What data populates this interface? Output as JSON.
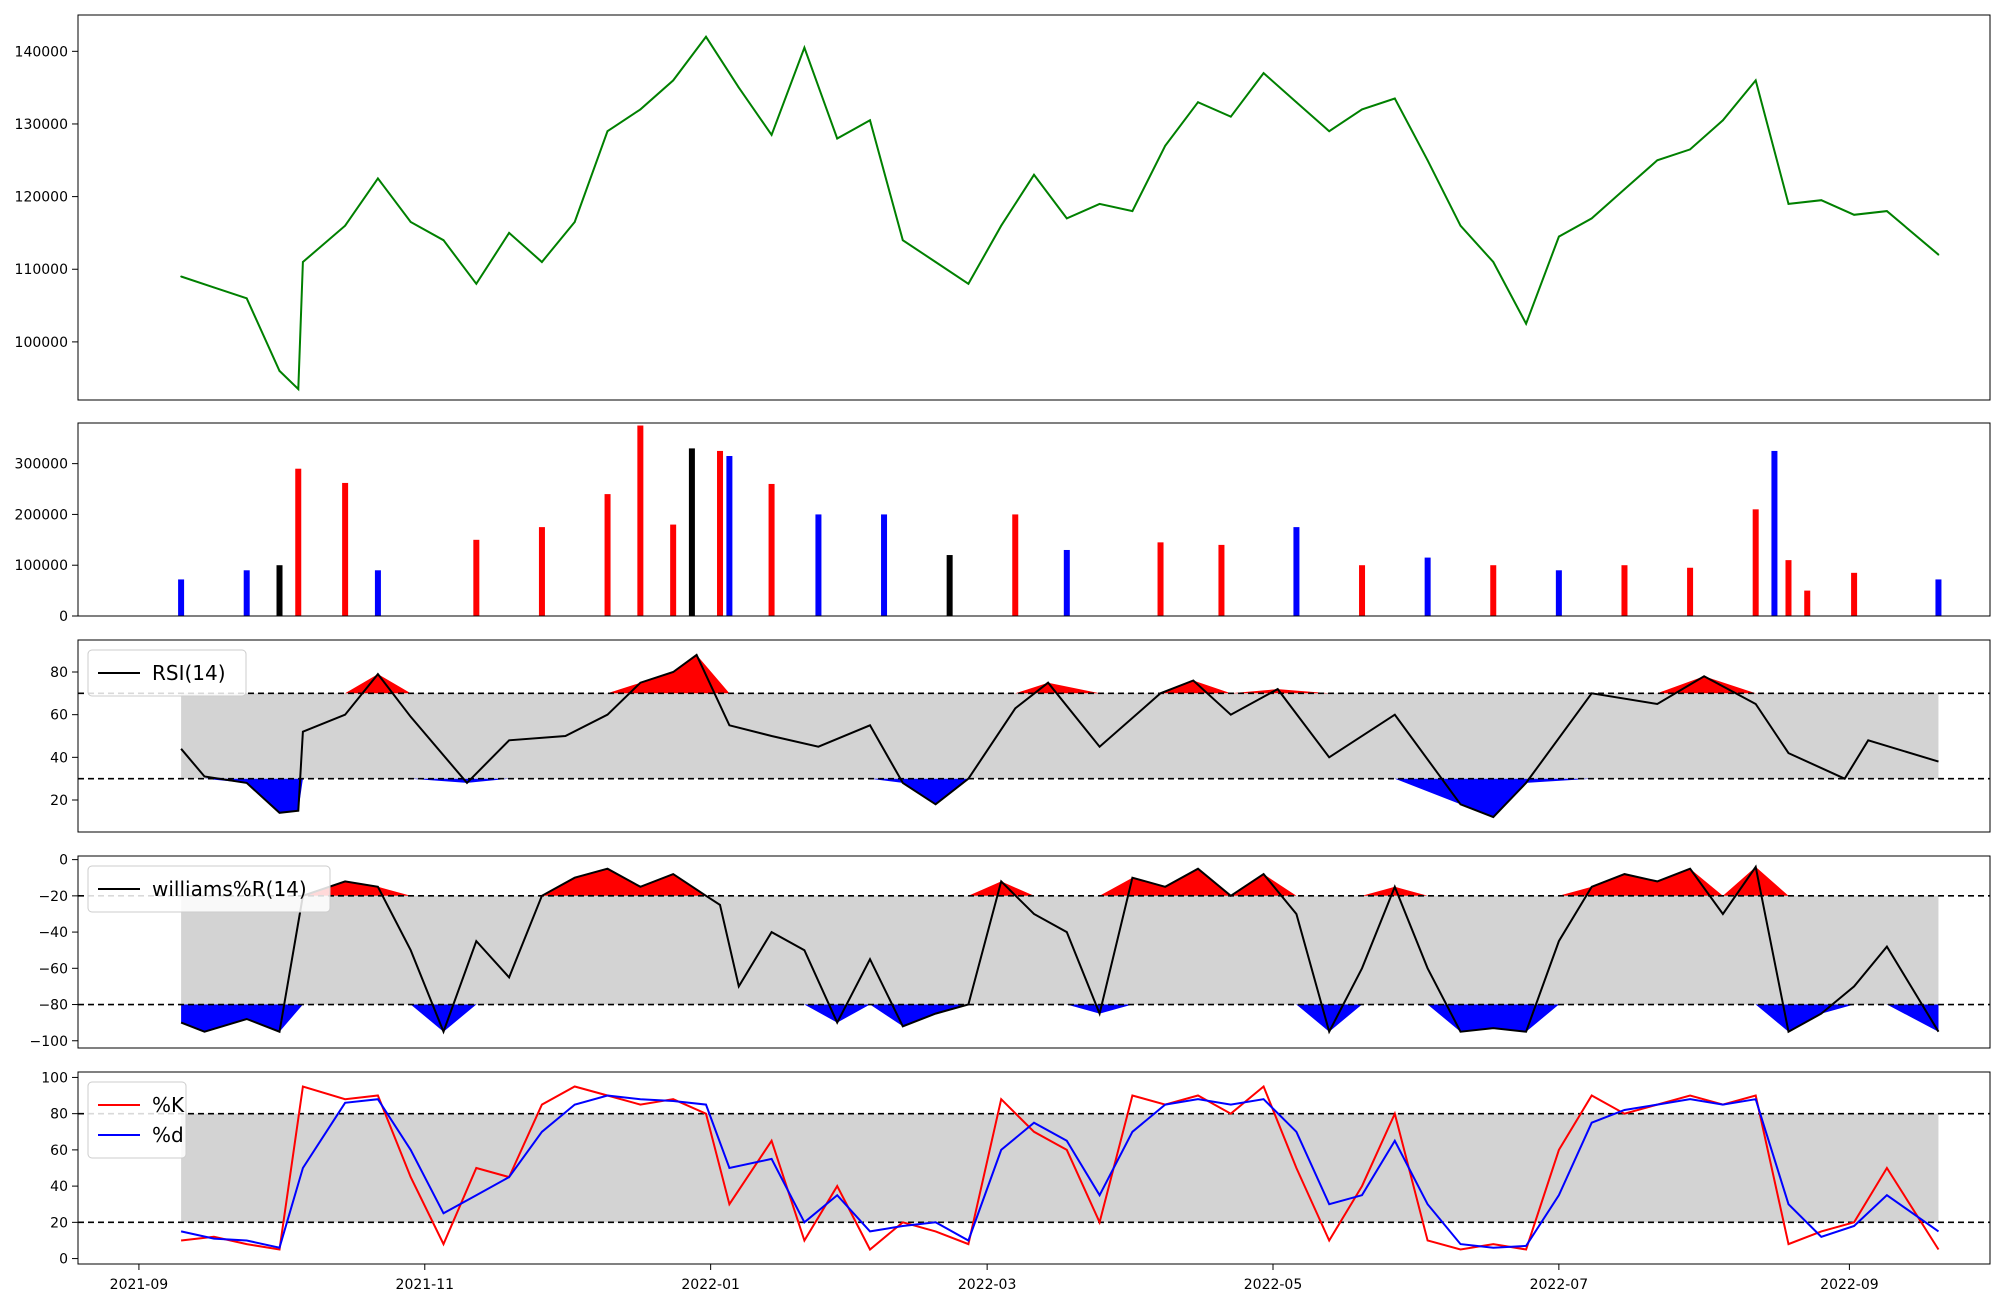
{
  "x_ticks": [
    "2021-09",
    "2021-11",
    "2022-01",
    "2022-03",
    "2022-05",
    "2022-07",
    "2022-09"
  ],
  "colors": {
    "price": "#008000",
    "up": "#ff0000",
    "down": "#0000ff",
    "flat": "#000000",
    "band": "#d3d3d3",
    "overbought": "#ff0000",
    "oversold": "#0000ff",
    "k": "#ff0000",
    "d": "#0000ff"
  },
  "chart_data": [
    {
      "type": "line",
      "panel": "price",
      "x_range": [
        "2021-09-10",
        "2022-09-20"
      ],
      "ylim": [
        92000,
        145000
      ],
      "y_ticks": [
        "100000",
        "110000",
        "120000",
        "130000",
        "140000"
      ],
      "series": [
        {
          "x": [
            "2021-09-10",
            "2021-09-17",
            "2021-09-24",
            "2021-10-01",
            "2021-10-05",
            "2021-10-06",
            "2021-10-15",
            "2021-10-22",
            "2021-10-29",
            "2021-11-05",
            "2021-11-12",
            "2021-11-19",
            "2021-11-26",
            "2021-12-03",
            "2021-12-10",
            "2021-12-17",
            "2021-12-24",
            "2021-12-31",
            "2022-01-07",
            "2022-01-14",
            "2022-01-21",
            "2022-01-28",
            "2022-02-04",
            "2022-02-11",
            "2022-02-18",
            "2022-02-25",
            "2022-03-04",
            "2022-03-11",
            "2022-03-18",
            "2022-03-25",
            "2022-04-01",
            "2022-04-08",
            "2022-04-15",
            "2022-04-22",
            "2022-04-29",
            "2022-05-06",
            "2022-05-13",
            "2022-05-20",
            "2022-05-27",
            "2022-06-03",
            "2022-06-10",
            "2022-06-17",
            "2022-06-24",
            "2022-07-01",
            "2022-07-08",
            "2022-07-15",
            "2022-07-22",
            "2022-07-29",
            "2022-08-05",
            "2022-08-12",
            "2022-08-19",
            "2022-08-26",
            "2022-09-02",
            "2022-09-09",
            "2022-09-20"
          ],
          "y": [
            109000,
            107500,
            106000,
            96000,
            93500,
            111000,
            116000,
            122500,
            116500,
            114000,
            108000,
            115000,
            111000,
            116500,
            129000,
            132000,
            136000,
            142000,
            135000,
            128500,
            140500,
            128000,
            130500,
            114000,
            111000,
            108000,
            116000,
            123000,
            117000,
            119000,
            118000,
            127000,
            133000,
            131000,
            137000,
            133000,
            129000,
            132000,
            133500,
            125000,
            116000,
            111000,
            102500,
            114500,
            117000,
            121000,
            125000,
            126500,
            130500,
            136000,
            119000,
            119500,
            117500,
            118000,
            112000
          ]
        }
      ]
    },
    {
      "type": "bar",
      "panel": "volume",
      "ylim": [
        0,
        380000
      ],
      "y_ticks": [
        "0",
        "100000",
        "200000",
        "300000"
      ],
      "series": [
        {
          "x": [
            "2021-09-10",
            "2021-09-24",
            "2021-10-01",
            "2021-10-05",
            "2021-10-15",
            "2021-10-22",
            "2021-11-12",
            "2021-11-26",
            "2021-12-10",
            "2021-12-17",
            "2021-12-24",
            "2021-12-28",
            "2022-01-03",
            "2022-01-05",
            "2022-01-14",
            "2022-01-24",
            "2022-02-07",
            "2022-02-21",
            "2022-03-07",
            "2022-03-18",
            "2022-04-07",
            "2022-04-20",
            "2022-05-06",
            "2022-05-20",
            "2022-06-03",
            "2022-06-17",
            "2022-07-01",
            "2022-07-15",
            "2022-07-29",
            "2022-08-12",
            "2022-08-16",
            "2022-08-19",
            "2022-08-23",
            "2022-09-02",
            "2022-09-20"
          ],
          "values": [
            72000,
            90000,
            100000,
            290000,
            262000,
            90000,
            150000,
            175000,
            240000,
            375000,
            180000,
            330000,
            325000,
            315000,
            260000,
            200000,
            200000,
            120000,
            200000,
            130000,
            145000,
            140000,
            175000,
            100000,
            115000,
            100000,
            90000,
            100000,
            95000,
            210000,
            325000,
            110000,
            50000,
            85000,
            72000
          ],
          "direction": [
            "down",
            "down",
            "flat",
            "up",
            "up",
            "down",
            "up",
            "up",
            "up",
            "up",
            "up",
            "flat",
            "up",
            "down",
            "up",
            "down",
            "down",
            "flat",
            "up",
            "down",
            "up",
            "up",
            "down",
            "up",
            "down",
            "up",
            "down",
            "up",
            "up",
            "up",
            "down",
            "up",
            "up",
            "up",
            "down"
          ]
        }
      ]
    },
    {
      "type": "line",
      "panel": "rsi",
      "ylim": [
        5,
        95
      ],
      "y_ticks": [
        "20",
        "40",
        "60",
        "80"
      ],
      "thresholds": [
        30,
        70
      ],
      "series": [
        {
          "name": "RSI(14)",
          "x": [
            "2021-09-10",
            "2021-09-15",
            "2021-09-24",
            "2021-10-01",
            "2021-10-05",
            "2021-10-06",
            "2021-10-15",
            "2021-10-22",
            "2021-10-29",
            "2021-11-10",
            "2021-11-19",
            "2021-12-01",
            "2021-12-10",
            "2021-12-17",
            "2021-12-24",
            "2021-12-29",
            "2022-01-05",
            "2022-01-14",
            "2022-01-24",
            "2022-02-04",
            "2022-02-11",
            "2022-02-18",
            "2022-02-25",
            "2022-03-07",
            "2022-03-14",
            "2022-03-25",
            "2022-04-07",
            "2022-04-14",
            "2022-04-22",
            "2022-05-02",
            "2022-05-13",
            "2022-05-27",
            "2022-06-10",
            "2022-06-17",
            "2022-06-24",
            "2022-07-08",
            "2022-07-22",
            "2022-08-01",
            "2022-08-12",
            "2022-08-19",
            "2022-08-31",
            "2022-09-05",
            "2022-09-20"
          ],
          "y": [
            44,
            31,
            28,
            14,
            15,
            52,
            60,
            79,
            59,
            28,
            48,
            50,
            60,
            75,
            80,
            88,
            55,
            50,
            45,
            55,
            28,
            18,
            30,
            63,
            75,
            45,
            70,
            76,
            60,
            72,
            40,
            60,
            18,
            12,
            28,
            70,
            65,
            78,
            65,
            42,
            30,
            48,
            38
          ]
        }
      ]
    },
    {
      "type": "line",
      "panel": "williams",
      "ylim": [
        -104,
        2
      ],
      "y_ticks": [
        "−100",
        "−80",
        "−60",
        "−40",
        "−20",
        "0"
      ],
      "thresholds": [
        -20,
        -80
      ],
      "series": [
        {
          "name": "williams%R(14)",
          "x": [
            "2021-09-10",
            "2021-09-15",
            "2021-09-24",
            "2021-10-01",
            "2021-10-06",
            "2021-10-15",
            "2021-10-22",
            "2021-10-29",
            "2021-11-05",
            "2021-11-12",
            "2021-11-19",
            "2021-11-26",
            "2021-12-03",
            "2021-12-10",
            "2021-12-17",
            "2021-12-24",
            "2021-12-31",
            "2022-01-03",
            "2022-01-07",
            "2022-01-14",
            "2022-01-21",
            "2022-01-28",
            "2022-02-04",
            "2022-02-11",
            "2022-02-18",
            "2022-02-25",
            "2022-03-04",
            "2022-03-11",
            "2022-03-18",
            "2022-03-25",
            "2022-04-01",
            "2022-04-08",
            "2022-04-15",
            "2022-04-22",
            "2022-04-29",
            "2022-05-06",
            "2022-05-13",
            "2022-05-20",
            "2022-05-27",
            "2022-06-03",
            "2022-06-10",
            "2022-06-17",
            "2022-06-24",
            "2022-07-01",
            "2022-07-08",
            "2022-07-15",
            "2022-07-22",
            "2022-07-29",
            "2022-08-05",
            "2022-08-12",
            "2022-08-19",
            "2022-08-26",
            "2022-09-02",
            "2022-09-09",
            "2022-09-20"
          ],
          "y": [
            -90,
            -95,
            -88,
            -95,
            -20,
            -12,
            -15,
            -50,
            -95,
            -45,
            -65,
            -20,
            -10,
            -5,
            -15,
            -8,
            -20,
            -25,
            -70,
            -40,
            -50,
            -90,
            -55,
            -92,
            -85,
            -80,
            -12,
            -30,
            -40,
            -85,
            -10,
            -15,
            -5,
            -20,
            -8,
            -30,
            -95,
            -60,
            -15,
            -60,
            -95,
            -93,
            -95,
            -45,
            -15,
            -8,
            -12,
            -5,
            -30,
            -4,
            -95,
            -85,
            -70,
            -48,
            -95
          ]
        }
      ]
    },
    {
      "type": "line",
      "panel": "stochastic",
      "ylim": [
        -3,
        103
      ],
      "y_ticks": [
        "0",
        "20",
        "40",
        "60",
        "80",
        "100"
      ],
      "thresholds": [
        20,
        80
      ],
      "series": [
        {
          "name": "%K",
          "x": [
            "2021-09-10",
            "2021-09-17",
            "2021-09-24",
            "2021-10-01",
            "2021-10-06",
            "2021-10-15",
            "2021-10-22",
            "2021-10-29",
            "2021-11-05",
            "2021-11-12",
            "2021-11-19",
            "2021-11-26",
            "2021-12-03",
            "2021-12-10",
            "2021-12-17",
            "2021-12-24",
            "2021-12-31",
            "2022-01-05",
            "2022-01-14",
            "2022-01-21",
            "2022-01-28",
            "2022-02-04",
            "2022-02-11",
            "2022-02-18",
            "2022-02-25",
            "2022-03-04",
            "2022-03-11",
            "2022-03-18",
            "2022-03-25",
            "2022-04-01",
            "2022-04-08",
            "2022-04-15",
            "2022-04-22",
            "2022-04-29",
            "2022-05-06",
            "2022-05-13",
            "2022-05-20",
            "2022-05-27",
            "2022-06-03",
            "2022-06-10",
            "2022-06-17",
            "2022-06-24",
            "2022-07-01",
            "2022-07-08",
            "2022-07-15",
            "2022-07-22",
            "2022-07-29",
            "2022-08-05",
            "2022-08-12",
            "2022-08-19",
            "2022-08-26",
            "2022-09-02",
            "2022-09-09",
            "2022-09-20"
          ],
          "y": [
            10,
            12,
            8,
            5,
            95,
            88,
            90,
            45,
            8,
            50,
            45,
            85,
            95,
            90,
            85,
            88,
            80,
            30,
            65,
            10,
            40,
            5,
            20,
            15,
            8,
            88,
            70,
            60,
            20,
            90,
            85,
            90,
            80,
            95,
            50,
            10,
            40,
            80,
            10,
            5,
            8,
            5,
            60,
            90,
            80,
            85,
            90,
            85,
            90,
            8,
            15,
            20,
            50,
            5
          ]
        },
        {
          "name": "%d",
          "x": [
            "2021-09-10",
            "2021-09-17",
            "2021-09-24",
            "2021-10-01",
            "2021-10-06",
            "2021-10-15",
            "2021-10-22",
            "2021-10-29",
            "2021-11-05",
            "2021-11-12",
            "2021-11-19",
            "2021-11-26",
            "2021-12-03",
            "2021-12-10",
            "2021-12-17",
            "2021-12-24",
            "2021-12-31",
            "2022-01-05",
            "2022-01-14",
            "2022-01-21",
            "2022-01-28",
            "2022-02-04",
            "2022-02-11",
            "2022-02-18",
            "2022-02-25",
            "2022-03-04",
            "2022-03-11",
            "2022-03-18",
            "2022-03-25",
            "2022-04-01",
            "2022-04-08",
            "2022-04-15",
            "2022-04-22",
            "2022-04-29",
            "2022-05-06",
            "2022-05-13",
            "2022-05-20",
            "2022-05-27",
            "2022-06-03",
            "2022-06-10",
            "2022-06-17",
            "2022-06-24",
            "2022-07-01",
            "2022-07-08",
            "2022-07-15",
            "2022-07-22",
            "2022-07-29",
            "2022-08-05",
            "2022-08-12",
            "2022-08-19",
            "2022-08-26",
            "2022-09-02",
            "2022-09-09",
            "2022-09-20"
          ],
          "y": [
            15,
            11,
            10,
            6,
            50,
            86,
            88,
            60,
            25,
            35,
            45,
            70,
            85,
            90,
            88,
            87,
            85,
            50,
            55,
            20,
            35,
            15,
            18,
            20,
            10,
            60,
            75,
            65,
            35,
            70,
            85,
            88,
            85,
            88,
            70,
            30,
            35,
            65,
            30,
            8,
            6,
            7,
            35,
            75,
            82,
            85,
            88,
            85,
            88,
            30,
            12,
            18,
            35,
            15
          ]
        }
      ]
    }
  ]
}
